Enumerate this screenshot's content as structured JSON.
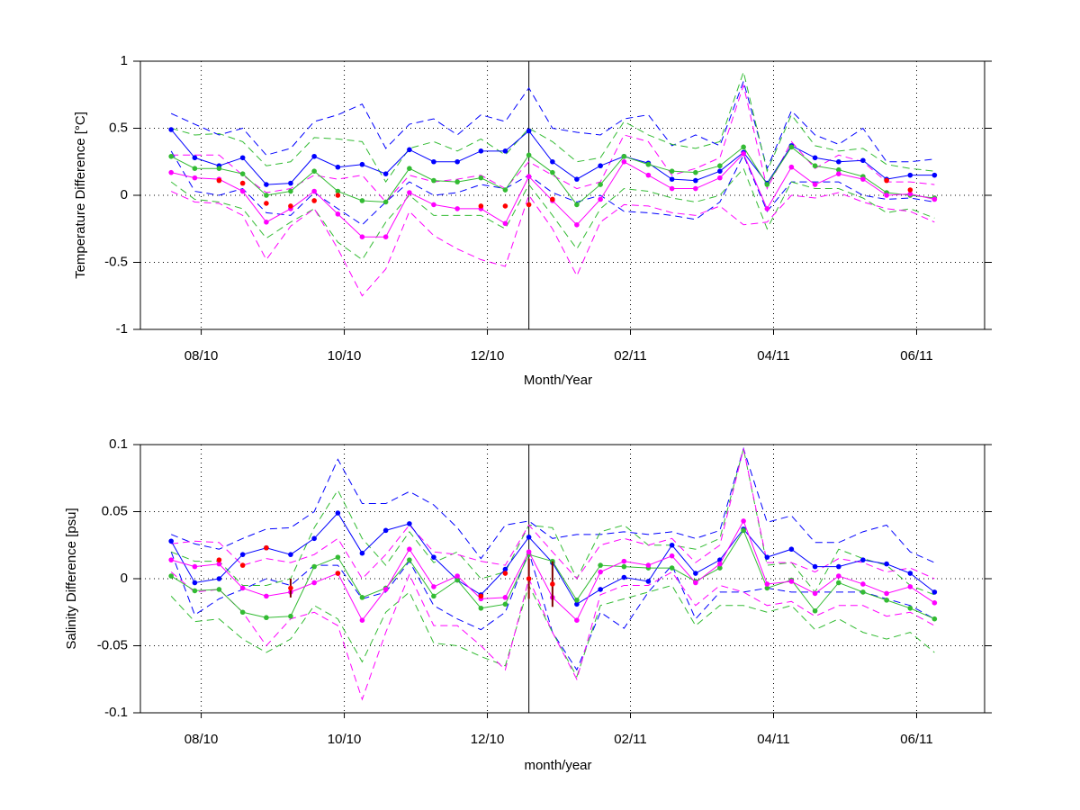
{
  "chart_data": [
    {
      "type": "line",
      "xlabel": "Month/Year",
      "ylabel": "Temperature Difference [°C]",
      "xlim": [
        7.15,
        18.95
      ],
      "xticks": [
        {
          "value": 8,
          "label": "08/10"
        },
        {
          "value": 10,
          "label": "10/10"
        },
        {
          "value": 12,
          "label": "12/10"
        },
        {
          "value": 14,
          "label": "02/11"
        },
        {
          "value": 16,
          "label": "04/11"
        },
        {
          "value": 18,
          "label": "06/11"
        }
      ],
      "ylim": [
        -1,
        1
      ],
      "yticks": [
        -1,
        -0.5,
        0,
        0.5,
        1
      ],
      "grid": true,
      "vline": 12.58,
      "x": [
        7.58,
        7.91,
        8.25,
        8.58,
        8.91,
        9.25,
        9.58,
        9.91,
        10.25,
        10.58,
        10.91,
        11.25,
        11.58,
        11.91,
        12.25,
        12.58,
        12.91,
        13.25,
        13.58,
        13.91,
        14.25,
        14.58,
        14.91,
        15.25,
        15.58,
        15.91,
        16.25,
        16.58,
        16.91,
        17.25,
        17.58,
        17.91,
        18.25
      ],
      "series": [
        {
          "color": "#0000ff",
          "style": "dashed",
          "values": [
            0.61,
            0.53,
            0.45,
            0.5,
            0.3,
            0.35,
            0.55,
            0.6,
            0.68,
            0.35,
            0.53,
            0.57,
            0.45,
            0.6,
            0.55,
            0.8,
            0.5,
            0.47,
            0.45,
            0.57,
            0.6,
            0.37,
            0.45,
            0.37,
            0.85,
            0.2,
            0.63,
            0.45,
            0.38,
            0.5,
            0.25,
            0.25,
            0.27
          ]
        },
        {
          "color": "#0000ff",
          "style": "dashed",
          "values": [
            0.33,
            0.03,
            0,
            0.05,
            -0.13,
            -0.15,
            0.02,
            -0.1,
            -0.22,
            -0.05,
            0.1,
            0,
            0.02,
            0.08,
            0.05,
            0.15,
            0.02,
            -0.05,
            0,
            -0.12,
            -0.13,
            -0.15,
            -0.18,
            -0.05,
            0.3,
            -0.12,
            0.1,
            0.1,
            0.1,
            0,
            -0.03,
            -0.02,
            -0.05
          ]
        },
        {
          "color": "#33bb33",
          "style": "dashed",
          "values": [
            0.5,
            0.45,
            0.46,
            0.4,
            0.22,
            0.25,
            0.43,
            0.42,
            0.4,
            0.1,
            0.35,
            0.4,
            0.33,
            0.42,
            0.3,
            0.5,
            0.4,
            0.25,
            0.28,
            0.55,
            0.45,
            0.38,
            0.35,
            0.4,
            0.92,
            0.18,
            0.6,
            0.37,
            0.33,
            0.35,
            0.23,
            0.2,
            0.18
          ]
        },
        {
          "color": "#33bb33",
          "style": "dashed",
          "values": [
            0.1,
            -0.03,
            -0.05,
            -0.1,
            -0.32,
            -0.2,
            -0.1,
            -0.35,
            -0.48,
            -0.2,
            0,
            -0.15,
            -0.15,
            -0.15,
            -0.25,
            0.08,
            -0.15,
            -0.4,
            -0.1,
            0.05,
            0.03,
            -0.02,
            -0.05,
            0,
            0.2,
            -0.25,
            0.1,
            0.05,
            0.05,
            -0.02,
            -0.13,
            -0.1,
            -0.17
          ]
        },
        {
          "color": "#ff00ff",
          "style": "dashed",
          "values": [
            0.3,
            0.3,
            0.3,
            0.15,
            0.02,
            0.05,
            0.15,
            0.12,
            0.15,
            -0.05,
            0.15,
            0.1,
            0.12,
            0.15,
            0.05,
            0.25,
            0.15,
            0.05,
            0.1,
            0.45,
            0.4,
            0.15,
            0.2,
            0.28,
            0.82,
            0.05,
            0.4,
            0.2,
            0.3,
            0.25,
            0.1,
            0.1,
            0.08
          ]
        },
        {
          "color": "#ff00ff",
          "style": "dashed",
          "values": [
            0.03,
            -0.05,
            -0.06,
            -0.15,
            -0.48,
            -0.23,
            -0.1,
            -0.4,
            -0.75,
            -0.55,
            -0.12,
            -0.3,
            -0.4,
            -0.48,
            -0.53,
            0,
            -0.25,
            -0.6,
            -0.2,
            -0.07,
            -0.08,
            -0.13,
            -0.15,
            -0.08,
            -0.22,
            -0.2,
            0,
            -0.02,
            0.02,
            -0.05,
            -0.1,
            -0.12,
            -0.2
          ]
        },
        {
          "color": "#0000ff",
          "style": "solid",
          "values": [
            0.49,
            0.28,
            0.22,
            0.28,
            0.08,
            0.09,
            0.29,
            0.21,
            0.23,
            0.16,
            0.34,
            0.25,
            0.25,
            0.33,
            0.33,
            0.48,
            0.25,
            0.12,
            0.22,
            0.29,
            0.24,
            0.12,
            0.11,
            0.18,
            0.32,
            0.09,
            0.37,
            0.28,
            0.25,
            0.26,
            0.12,
            0.15,
            0.15
          ]
        },
        {
          "color": "#33bb33",
          "style": "solid",
          "values": [
            0.29,
            0.2,
            0.2,
            0.16,
            0,
            0.03,
            0.18,
            0.03,
            -0.04,
            -0.05,
            0.2,
            0.11,
            0.1,
            0.13,
            0.04,
            0.3,
            0.17,
            -0.07,
            0.08,
            0.29,
            0.23,
            0.18,
            0.17,
            0.22,
            0.36,
            0.08,
            0.36,
            0.22,
            0.19,
            0.14,
            0.02,
            0,
            -0.02
          ]
        },
        {
          "color": "#ff00ff",
          "style": "solid",
          "values": [
            0.17,
            0.13,
            0.12,
            0.03,
            -0.2,
            -0.1,
            0.03,
            -0.14,
            -0.31,
            -0.31,
            0.02,
            -0.07,
            -0.1,
            -0.1,
            -0.21,
            0.14,
            -0.04,
            -0.22,
            -0.03,
            0.25,
            0.15,
            0.05,
            0.05,
            0.13,
            0.31,
            -0.1,
            0.21,
            0.08,
            0.16,
            0.12,
            0,
            0.01,
            -0.03
          ]
        },
        {
          "color": "#ff0000",
          "style": "markers",
          "values": [
            null,
            null,
            0.11,
            0.09,
            -0.06,
            -0.08,
            -0.04,
            0,
            null,
            null,
            null,
            null,
            null,
            -0.08,
            -0.08,
            -0.07,
            -0.03,
            null,
            null,
            null,
            null,
            null,
            null,
            null,
            null,
            null,
            null,
            null,
            null,
            null,
            0.11,
            0.04,
            null
          ]
        }
      ]
    },
    {
      "type": "line",
      "xlabel": "month/year",
      "ylabel": "Salinity Difference [psu]",
      "xlim": [
        7.15,
        18.95
      ],
      "xticks": [
        {
          "value": 8,
          "label": "08/10"
        },
        {
          "value": 10,
          "label": "10/10"
        },
        {
          "value": 12,
          "label": "12/10"
        },
        {
          "value": 14,
          "label": "02/11"
        },
        {
          "value": 16,
          "label": "04/11"
        },
        {
          "value": 18,
          "label": "06/11"
        }
      ],
      "ylim": [
        -0.1,
        0.1
      ],
      "yticks": [
        -0.1,
        -0.05,
        0,
        0.05,
        0.1
      ],
      "grid": true,
      "vline": 12.58,
      "x": [
        7.58,
        7.91,
        8.25,
        8.58,
        8.91,
        9.25,
        9.58,
        9.91,
        10.25,
        10.58,
        10.91,
        11.25,
        11.58,
        11.91,
        12.25,
        12.58,
        12.91,
        13.25,
        13.58,
        13.91,
        14.25,
        14.58,
        14.91,
        15.25,
        15.58,
        15.91,
        16.25,
        16.58,
        16.91,
        17.25,
        17.58,
        17.91,
        18.25
      ],
      "series": [
        {
          "color": "#0000ff",
          "style": "dashed",
          "values": [
            0.033,
            0.026,
            0.022,
            0.03,
            0.037,
            0.038,
            0.05,
            0.089,
            0.056,
            0.056,
            0.065,
            0.055,
            0.038,
            0.015,
            0.04,
            0.043,
            0.03,
            0.033,
            0.033,
            0.035,
            0.033,
            0.035,
            0.03,
            0.036,
            0.097,
            0.042,
            0.047,
            0.027,
            0.027,
            0.035,
            0.04,
            0.02,
            0.012
          ]
        },
        {
          "color": "#0000ff",
          "style": "dashed",
          "values": [
            0.02,
            -0.027,
            -0.015,
            -0.008,
            0,
            -0.005,
            0.01,
            0.01,
            -0.015,
            -0.01,
            0.013,
            -0.02,
            -0.03,
            -0.038,
            -0.025,
            0.02,
            -0.04,
            -0.068,
            -0.025,
            -0.037,
            -0.01,
            0.01,
            -0.03,
            -0.01,
            -0.01,
            -0.007,
            -0.01,
            -0.01,
            -0.01,
            -0.01,
            -0.015,
            -0.02,
            -0.03
          ]
        },
        {
          "color": "#33bb33",
          "style": "dashed",
          "values": [
            0.02,
            0.013,
            0.013,
            -0.005,
            -0.005,
            0,
            0.038,
            0.066,
            0.03,
            0.01,
            0.035,
            0.012,
            0.02,
            0,
            0.005,
            0.04,
            0.038,
            0,
            0.035,
            0.04,
            0.025,
            0.025,
            0.022,
            0.03,
            0.097,
            0.01,
            0.012,
            -0.01,
            0.022,
            0.015,
            0.01,
            -0.005,
            -0.012
          ]
        },
        {
          "color": "#33bb33",
          "style": "dashed",
          "values": [
            -0.013,
            -0.032,
            -0.03,
            -0.045,
            -0.055,
            -0.045,
            -0.02,
            -0.03,
            -0.062,
            -0.025,
            -0.01,
            -0.048,
            -0.05,
            -0.058,
            -0.065,
            -0.005,
            -0.04,
            -0.073,
            -0.02,
            -0.015,
            -0.01,
            -0.005,
            -0.035,
            -0.02,
            -0.02,
            -0.025,
            -0.02,
            -0.038,
            -0.03,
            -0.04,
            -0.045,
            -0.04,
            -0.055
          ]
        },
        {
          "color": "#ff00ff",
          "style": "dashed",
          "values": [
            0.026,
            0.028,
            0.027,
            0.01,
            0.015,
            0.012,
            0.018,
            0.03,
            0,
            0.018,
            0.04,
            0.02,
            0.018,
            0.013,
            0.01,
            0.04,
            0.02,
            0,
            0.025,
            0.03,
            0.025,
            0.03,
            0.012,
            0.025,
            0.097,
            0.012,
            0.012,
            0.005,
            0.015,
            0.012,
            0.005,
            0.008,
            0
          ]
        },
        {
          "color": "#ff00ff",
          "style": "dashed",
          "values": [
            0.005,
            -0.01,
            -0.008,
            -0.025,
            -0.05,
            -0.03,
            -0.025,
            -0.035,
            -0.09,
            -0.04,
            0.003,
            -0.035,
            -0.035,
            -0.05,
            -0.068,
            0,
            -0.04,
            -0.075,
            -0.012,
            -0.005,
            -0.005,
            0.005,
            -0.02,
            -0.005,
            -0.01,
            -0.02,
            -0.017,
            -0.028,
            -0.02,
            -0.02,
            -0.028,
            -0.025,
            -0.035
          ]
        },
        {
          "color": "#0000ff",
          "style": "solid",
          "values": [
            0.028,
            -0.003,
            0,
            0.018,
            0.023,
            0.018,
            0.03,
            0.049,
            0.019,
            0.036,
            0.041,
            0.016,
            -0.001,
            -0.012,
            0.007,
            0.031,
            0.012,
            -0.019,
            -0.008,
            0.001,
            -0.002,
            0.025,
            0.004,
            0.014,
            0.037,
            0.016,
            0.022,
            0.009,
            0.009,
            0.014,
            0.011,
            0.004,
            -0.01
          ]
        },
        {
          "color": "#33bb33",
          "style": "solid",
          "values": [
            0.002,
            -0.009,
            -0.008,
            -0.025,
            -0.029,
            -0.028,
            0.009,
            0.016,
            -0.014,
            -0.007,
            0.014,
            -0.013,
            -0.001,
            -0.022,
            -0.019,
            0.018,
            0.013,
            -0.016,
            0.01,
            0.009,
            0.008,
            0.008,
            -0.002,
            0.008,
            0.036,
            -0.007,
            -0.001,
            -0.024,
            -0.003,
            -0.01,
            -0.016,
            -0.022,
            -0.03
          ]
        },
        {
          "color": "#ff00ff",
          "style": "solid",
          "values": [
            0.014,
            0.009,
            0.011,
            -0.007,
            -0.013,
            -0.01,
            -0.003,
            0.004,
            -0.031,
            -0.008,
            0.022,
            -0.006,
            0.002,
            -0.015,
            -0.014,
            0.02,
            -0.014,
            -0.031,
            0.005,
            0.013,
            0.01,
            0.017,
            -0.003,
            0.011,
            0.043,
            -0.004,
            -0.002,
            -0.011,
            0.002,
            -0.004,
            -0.011,
            -0.006,
            -0.018
          ]
        },
        {
          "color": "#ff0000",
          "style": "markers",
          "error_color": "#800000",
          "values": [
            null,
            null,
            0.014,
            0.01,
            0.023,
            -0.007,
            null,
            0.004,
            null,
            null,
            null,
            null,
            null,
            -0.013,
            0.004,
            0,
            -0.004,
            null,
            null,
            null,
            null,
            null,
            null,
            null,
            null,
            null,
            null,
            null,
            null,
            null,
            null,
            null,
            null
          ],
          "errors": [
            null,
            null,
            null,
            null,
            null,
            0.007,
            null,
            null,
            null,
            null,
            null,
            null,
            null,
            null,
            null,
            0.015,
            0.017,
            null,
            null,
            null,
            null,
            null,
            null,
            null,
            null,
            null,
            null,
            null,
            null,
            null,
            null,
            null,
            null
          ]
        }
      ]
    }
  ]
}
